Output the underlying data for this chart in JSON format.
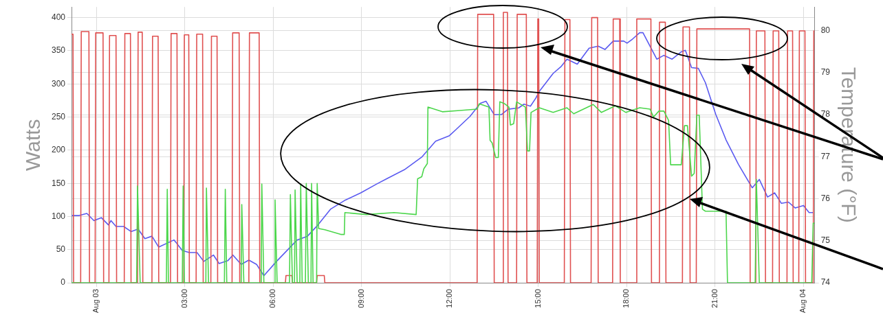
{
  "chart_data": {
    "type": "line",
    "ylabel": "Watts",
    "y2label": "Temperature (°F)",
    "xlim": [
      -0.85,
      24.38
    ],
    "xticks": [
      {
        "value": 0,
        "label": "Aug 03"
      },
      {
        "value": 3,
        "label": "03:00"
      },
      {
        "value": 6,
        "label": "06:00"
      },
      {
        "value": 9,
        "label": "09:00"
      },
      {
        "value": 12,
        "label": "12:00"
      },
      {
        "value": 15,
        "label": "15:00"
      },
      {
        "value": 18,
        "label": "18:00"
      },
      {
        "value": 21,
        "label": "21:00"
      },
      {
        "value": 24,
        "label": "Aug 04"
      }
    ],
    "ylim": [
      0,
      416
    ],
    "yticks": [
      0,
      50,
      100,
      150,
      200,
      250,
      300,
      350,
      400
    ],
    "y2lim": [
      74,
      80.56
    ],
    "y2ticks": [
      74,
      75,
      76,
      77,
      78,
      79,
      80
    ],
    "grid": true,
    "legend": false,
    "series": [
      {
        "color": "#4cd64c",
        "x": [
          -0.85,
          1.36,
          1.39,
          1.48,
          2.37,
          2.4,
          2.44,
          2.91,
          2.94,
          2.98,
          3.71,
          3.73,
          3.8,
          4.34,
          4.37,
          4.42,
          4.91,
          4.93,
          5.0,
          5.59,
          5.61,
          5.68,
          6.04,
          6.06,
          6.13,
          6.55,
          6.58,
          6.65,
          6.72,
          6.74,
          6.81,
          6.9,
          6.93,
          6.98,
          7.09,
          7.12,
          7.19,
          7.28,
          7.3,
          7.35,
          7.47,
          7.49,
          7.54,
          7.75,
          8.29,
          8.41,
          8.43,
          9.16,
          10.1,
          10.85,
          10.9,
          11.04,
          11.11,
          11.23,
          11.25,
          11.74,
          12.33,
          12.92,
          12.99,
          13.32,
          13.36,
          13.43,
          13.55,
          13.64,
          13.69,
          13.86,
          14.0,
          14.05,
          14.16,
          14.26,
          14.56,
          14.63,
          14.7,
          14.75,
          15.03,
          15.5,
          15.97,
          16.2,
          16.86,
          17.14,
          17.61,
          17.97,
          18.44,
          18.79,
          18.91,
          19.09,
          19.26,
          19.42,
          19.49,
          19.85,
          19.96,
          20.06,
          20.2,
          20.29,
          20.38,
          20.46,
          20.57,
          20.67,
          21.37,
          21.42,
          22.36,
          22.4,
          22.5,
          24.28,
          24.33,
          24.38
        ],
        "values": [
          0,
          0,
          146,
          0,
          0,
          141,
          0,
          0,
          146,
          0,
          0,
          143,
          0,
          0,
          141,
          0,
          0,
          118,
          0,
          0,
          149,
          0,
          0,
          125,
          0,
          0,
          133,
          0,
          0,
          140,
          0,
          0,
          149,
          0,
          0,
          150,
          0,
          0,
          150,
          0,
          0,
          150,
          82,
          80,
          73,
          73,
          106,
          103,
          106,
          103,
          157,
          160,
          172,
          180,
          265,
          258,
          260,
          262,
          270,
          265,
          215,
          211,
          189,
          189,
          273,
          270,
          265,
          238,
          240,
          273,
          265,
          199,
          199,
          257,
          264,
          257,
          264,
          255,
          269,
          257,
          267,
          257,
          264,
          262,
          250,
          259,
          259,
          245,
          178,
          178,
          237,
          237,
          161,
          165,
          253,
          253,
          111,
          108,
          108,
          0,
          0,
          156,
          0,
          0,
          90,
          90
        ]
      },
      {
        "color": "#e05050",
        "x": [
          -0.85,
          -0.8,
          -0.78,
          -0.54,
          -0.52,
          -0.26,
          -0.24,
          -0.05,
          -0.03,
          0.22,
          0.24,
          0.42,
          0.44,
          0.66,
          0.68,
          0.94,
          0.96,
          1.15,
          1.17,
          1.39,
          1.41,
          1.55,
          1.57,
          1.88,
          1.9,
          2.09,
          2.11,
          2.51,
          2.53,
          2.73,
          2.75,
          2.96,
          2.98,
          3.13,
          3.15,
          3.38,
          3.4,
          3.6,
          3.62,
          3.88,
          3.9,
          4.09,
          4.11,
          4.6,
          4.62,
          4.84,
          4.86,
          5.17,
          5.19,
          5.52,
          5.54,
          6.41,
          6.43,
          6.63,
          6.65,
          7.47,
          7.49,
          7.73,
          7.75,
          12.92,
          12.94,
          13.48,
          13.5,
          13.79,
          13.81,
          13.95,
          13.97,
          14.26,
          14.28,
          14.59,
          14.61,
          14.96,
          14.98,
          15.01,
          15.03,
          15.88,
          15.9,
          16.07,
          16.09,
          16.79,
          16.81,
          17.01,
          17.03,
          17.52,
          17.54,
          17.76,
          17.78,
          18.32,
          18.34,
          18.82,
          18.84,
          19.09,
          19.11,
          19.31,
          19.33,
          19.89,
          19.91,
          20.13,
          20.15,
          20.36,
          20.38,
          22.17,
          22.19,
          22.38,
          22.4,
          22.69,
          22.71,
          22.95,
          22.97,
          23.16,
          23.18,
          23.44,
          23.46,
          23.63,
          23.65,
          23.84,
          23.86,
          24.05,
          24.07,
          24.33,
          24.35,
          24.38
        ],
        "values": [
          375,
          375,
          0,
          0,
          379,
          379,
          0,
          0,
          377,
          377,
          0,
          0,
          373,
          373,
          0,
          0,
          376,
          376,
          0,
          0,
          378,
          378,
          0,
          0,
          372,
          372,
          0,
          0,
          376,
          376,
          0,
          0,
          374,
          374,
          0,
          0,
          375,
          375,
          0,
          0,
          372,
          372,
          0,
          0,
          377,
          377,
          0,
          0,
          377,
          377,
          0,
          0,
          11,
          11,
          0,
          0,
          11,
          11,
          0,
          0,
          405,
          405,
          0,
          0,
          408,
          408,
          0,
          0,
          405,
          405,
          0,
          0,
          398,
          398,
          0,
          0,
          397,
          397,
          0,
          0,
          400,
          400,
          0,
          0,
          398,
          398,
          0,
          0,
          398,
          398,
          0,
          0,
          393,
          393,
          0,
          0,
          386,
          386,
          0,
          0,
          383,
          383,
          0,
          0,
          380,
          380,
          0,
          0,
          380,
          380,
          0,
          0,
          380,
          380,
          0,
          0,
          380,
          380,
          0,
          0,
          380,
          380
        ]
      },
      {
        "color": "#5a5af0",
        "axis": "y2",
        "x": [
          -0.84,
          -0.59,
          -0.33,
          -0.09,
          0.16,
          0.4,
          0.49,
          0.66,
          0.92,
          1.17,
          1.41,
          1.64,
          1.88,
          2.11,
          2.63,
          2.91,
          3.15,
          3.41,
          3.64,
          3.97,
          4.16,
          4.46,
          4.63,
          4.91,
          5.17,
          5.43,
          5.68,
          6.11,
          6.81,
          7.16,
          7.52,
          7.94,
          8.45,
          8.97,
          9.51,
          9.86,
          10.45,
          11.04,
          11.51,
          11.98,
          12.21,
          12.68,
          13.03,
          13.22,
          13.5,
          13.74,
          13.97,
          14.33,
          14.51,
          14.73,
          14.91,
          15.03,
          15.5,
          15.78,
          15.97,
          16.32,
          16.72,
          17.03,
          17.26,
          17.54,
          17.9,
          18.01,
          18.2,
          18.44,
          18.55,
          19.02,
          19.26,
          19.54,
          19.84,
          19.99,
          20.2,
          20.43,
          20.67,
          21.02,
          21.37,
          21.79,
          22.26,
          22.5,
          22.78,
          23.02,
          23.25,
          23.49,
          23.72,
          24.0,
          24.19,
          24.33
        ],
        "values": [
          75.6,
          75.6,
          75.65,
          75.48,
          75.55,
          75.38,
          75.48,
          75.34,
          75.34,
          75.22,
          75.28,
          75.05,
          75.11,
          74.85,
          75.02,
          74.77,
          74.72,
          74.72,
          74.51,
          74.66,
          74.46,
          74.53,
          74.66,
          74.44,
          74.54,
          74.44,
          74.17,
          74.51,
          75.02,
          75.11,
          75.38,
          75.75,
          75.97,
          76.14,
          76.35,
          76.48,
          76.69,
          76.99,
          77.37,
          77.5,
          77.65,
          77.96,
          78.27,
          78.32,
          78.0,
          78.0,
          78.13,
          78.16,
          78.25,
          78.2,
          78.39,
          78.55,
          78.98,
          79.15,
          79.32,
          79.2,
          79.58,
          79.63,
          79.55,
          79.75,
          79.75,
          79.7,
          79.8,
          79.95,
          79.95,
          79.32,
          79.41,
          79.32,
          79.49,
          79.53,
          79.12,
          79.1,
          78.76,
          78.01,
          77.4,
          76.82,
          76.26,
          76.46,
          76.04,
          76.14,
          75.89,
          75.92,
          75.78,
          75.84,
          75.67,
          75.67
        ]
      }
    ]
  }
}
